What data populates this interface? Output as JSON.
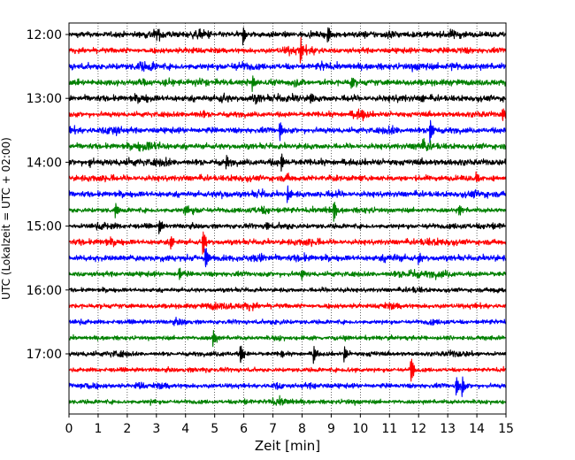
{
  "chart_data": {
    "type": "line",
    "title": "",
    "xlabel": "Zeit  [min]",
    "ylabel": "UTC (Lokalzeit = UTC + 02:00)",
    "xlim": [
      0,
      15
    ],
    "x_ticks": [
      "0",
      "1",
      "2",
      "3",
      "4",
      "5",
      "6",
      "7",
      "8",
      "9",
      "10",
      "11",
      "12",
      "13",
      "14",
      "15"
    ],
    "y_ticks": [
      "12:00",
      "13:00",
      "14:00",
      "15:00",
      "16:00",
      "17:00"
    ],
    "grid": "vertical dotted at each minute",
    "trace_interval_minutes": 15,
    "colors": [
      "#000000",
      "#ff0000",
      "#0000ff",
      "#008000"
    ],
    "traces": [
      {
        "start": "12:00",
        "color": "#000000",
        "amp": 0.3,
        "events": [
          {
            "t": 5.98,
            "a": 1.2
          },
          {
            "t": 8.88,
            "a": 1.1
          }
        ]
      },
      {
        "start": "12:15",
        "color": "#ff0000",
        "amp": 0.28,
        "events": [
          {
            "t": 7.95,
            "a": 1.3
          }
        ]
      },
      {
        "start": "12:30",
        "color": "#0000ff",
        "amp": 0.33,
        "events": []
      },
      {
        "start": "12:45",
        "color": "#008000",
        "amp": 0.32,
        "events": [
          {
            "t": 6.3,
            "a": 0.9
          },
          {
            "t": 9.7,
            "a": 0.8
          }
        ]
      },
      {
        "start": "13:00",
        "color": "#000000",
        "amp": 0.32,
        "events": [
          {
            "t": 8.3,
            "a": 0.6
          },
          {
            "t": 12.1,
            "a": 0.7
          }
        ]
      },
      {
        "start": "13:15",
        "color": "#ff0000",
        "amp": 0.28,
        "events": [
          {
            "t": 10.1,
            "a": 0.6
          },
          {
            "t": 14.9,
            "a": 0.8
          }
        ]
      },
      {
        "start": "13:30",
        "color": "#0000ff",
        "amp": 0.3,
        "events": [
          {
            "t": 7.25,
            "a": 1.2
          },
          {
            "t": 12.4,
            "a": 1.6
          }
        ]
      },
      {
        "start": "13:45",
        "color": "#008000",
        "amp": 0.3,
        "events": []
      },
      {
        "start": "14:00",
        "color": "#000000",
        "amp": 0.33,
        "events": [
          {
            "t": 0.7,
            "a": 0.6
          },
          {
            "t": 5.4,
            "a": 0.6
          },
          {
            "t": 7.3,
            "a": 0.9
          }
        ]
      },
      {
        "start": "14:15",
        "color": "#ff0000",
        "amp": 0.3,
        "events": [
          {
            "t": 14.0,
            "a": 0.7
          }
        ]
      },
      {
        "start": "14:30",
        "color": "#0000ff",
        "amp": 0.3,
        "events": [
          {
            "t": 7.5,
            "a": 1.1
          }
        ]
      },
      {
        "start": "14:45",
        "color": "#008000",
        "amp": 0.25,
        "events": [
          {
            "t": 1.6,
            "a": 1.0
          },
          {
            "t": 4.0,
            "a": 0.8
          },
          {
            "t": 9.1,
            "a": 1.4
          },
          {
            "t": 13.4,
            "a": 0.7
          }
        ]
      },
      {
        "start": "15:00",
        "color": "#000000",
        "amp": 0.25,
        "events": [
          {
            "t": 3.1,
            "a": 1.2
          },
          {
            "t": 6.8,
            "a": 0.5
          }
        ]
      },
      {
        "start": "15:15",
        "color": "#ff0000",
        "amp": 0.28,
        "events": [
          {
            "t": 3.5,
            "a": 1.0
          },
          {
            "t": 4.6,
            "a": 1.8
          }
        ]
      },
      {
        "start": "15:30",
        "color": "#0000ff",
        "amp": 0.3,
        "events": [
          {
            "t": 4.7,
            "a": 1.3
          },
          {
            "t": 12.0,
            "a": 0.7
          }
        ]
      },
      {
        "start": "15:45",
        "color": "#008000",
        "amp": 0.27,
        "events": [
          {
            "t": 3.8,
            "a": 0.8
          },
          {
            "t": 8.0,
            "a": 0.5
          }
        ]
      },
      {
        "start": "16:00",
        "color": "#000000",
        "amp": 0.22,
        "events": []
      },
      {
        "start": "16:15",
        "color": "#ff0000",
        "amp": 0.25,
        "events": []
      },
      {
        "start": "16:30",
        "color": "#0000ff",
        "amp": 0.22,
        "events": []
      },
      {
        "start": "16:45",
        "color": "#008000",
        "amp": 0.22,
        "events": [
          {
            "t": 4.95,
            "a": 1.0
          }
        ]
      },
      {
        "start": "17:00",
        "color": "#000000",
        "amp": 0.22,
        "events": [
          {
            "t": 5.9,
            "a": 1.2
          },
          {
            "t": 7.3,
            "a": 0.6
          },
          {
            "t": 8.4,
            "a": 1.2
          },
          {
            "t": 9.45,
            "a": 1.1
          }
        ]
      },
      {
        "start": "17:15",
        "color": "#ff0000",
        "amp": 0.22,
        "events": [
          {
            "t": 11.75,
            "a": 1.6
          }
        ]
      },
      {
        "start": "17:30",
        "color": "#0000ff",
        "amp": 0.25,
        "events": [
          {
            "t": 13.3,
            "a": 1.3
          },
          {
            "t": 13.5,
            "a": 1.4
          }
        ]
      },
      {
        "start": "17:45",
        "color": "#008000",
        "amp": 0.22,
        "events": []
      }
    ]
  }
}
